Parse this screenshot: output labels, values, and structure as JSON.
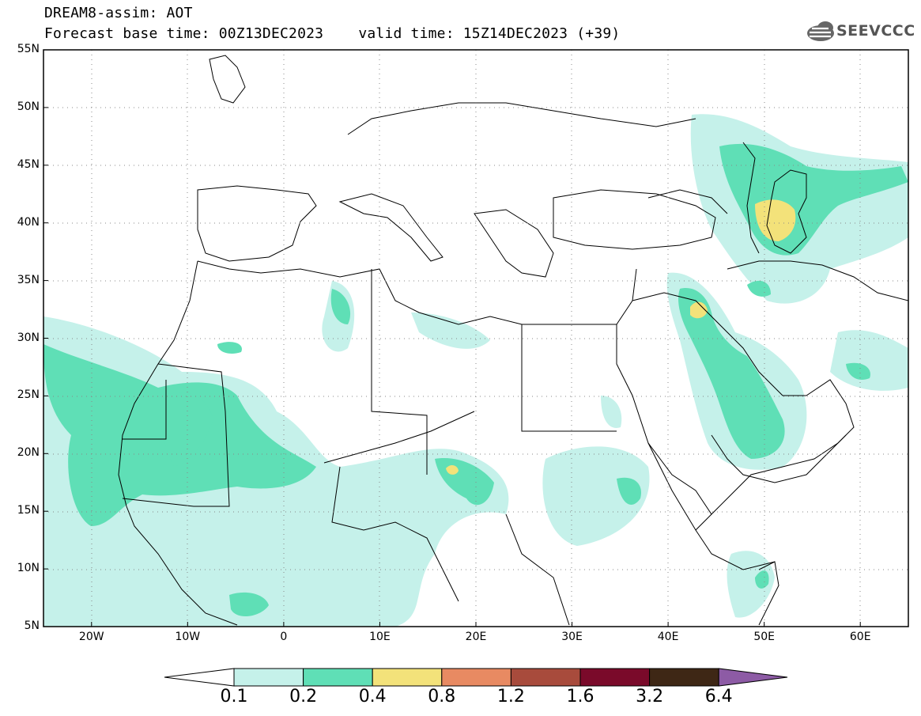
{
  "title": {
    "line1": "DREAM8-assim: AOT",
    "line2": "Forecast base time: 00Z13DEC2023    valid time: 15Z14DEC2023 (+39)"
  },
  "logo": {
    "text": "SEEVCCC",
    "icon": "cloud-logo-icon"
  },
  "map": {
    "lat_labels": [
      "55N",
      "50N",
      "45N",
      "40N",
      "35N",
      "30N",
      "25N",
      "20N",
      "15N",
      "10N",
      "5N"
    ],
    "lon_labels": [
      "20W",
      "10W",
      "0",
      "10E",
      "20E",
      "30E",
      "40E",
      "50E",
      "60E"
    ],
    "lon_range": [
      -25,
      65
    ],
    "lat_range": [
      5,
      55
    ],
    "grid": "dotted"
  },
  "legend": {
    "labels": [
      "0.1",
      "0.2",
      "0.4",
      "0.8",
      "1.2",
      "1.6",
      "3.2",
      "6.4"
    ],
    "colors": [
      "#ffffff",
      "#c5f1ea",
      "#5fdfb6",
      "#f3e27a",
      "#e88a62",
      "#a84b3c",
      "#7a0a2a",
      "#3e2715",
      "#8d5ba5"
    ]
  }
}
